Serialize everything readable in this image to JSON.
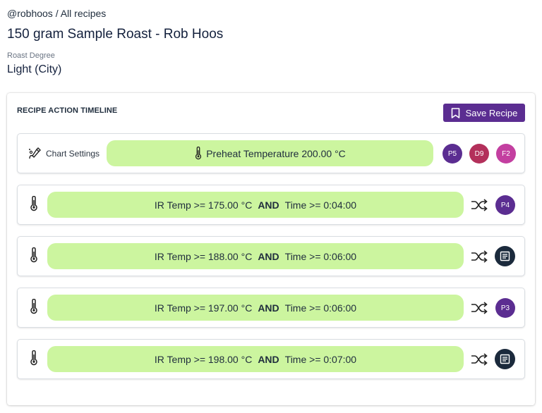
{
  "breadcrumb": {
    "user": "@robhoos",
    "separator": " / ",
    "section": "All recipes"
  },
  "page": {
    "title": "150 gram Sample Roast - Rob Hoos"
  },
  "roast_degree": {
    "label": "Roast Degree",
    "value": "Light (City)"
  },
  "timeline": {
    "title": "RECIPE ACTION TIMELINE",
    "save_label": "Save Recipe",
    "chart_settings_label": "Chart Settings",
    "preheat_label": "Preheat Temperature 200.00 °C",
    "preheat_badges": [
      {
        "label": "P5",
        "color": "#5b2d91"
      },
      {
        "label": "D9",
        "color": "#b3305b"
      },
      {
        "label": "F2",
        "color": "#c33fa0"
      }
    ],
    "rows": [
      {
        "condition_a": "IR Temp >= 175.00 °C",
        "operator": "AND",
        "condition_b": "Time >= 0:04:00",
        "badge": "P4"
      },
      {
        "condition_a": "IR Temp >= 188.00 °C",
        "operator": "AND",
        "condition_b": "Time >= 0:06:00",
        "badge": ""
      },
      {
        "condition_a": "IR Temp >= 197.00 °C",
        "operator": "AND",
        "condition_b": "Time >= 0:06:00",
        "badge": "P3"
      },
      {
        "condition_a": "IR Temp >= 198.00 °C",
        "operator": "AND",
        "condition_b": "Time >= 0:07:00",
        "badge": ""
      }
    ]
  },
  "colors": {
    "accent": "#5b2d91",
    "pill": "#ccf59f",
    "note": "#1b2a3c"
  },
  "icons": [
    "thermometer-icon",
    "chart-settings-icon",
    "shuffle-icon",
    "bookmark-icon",
    "note-icon"
  ]
}
